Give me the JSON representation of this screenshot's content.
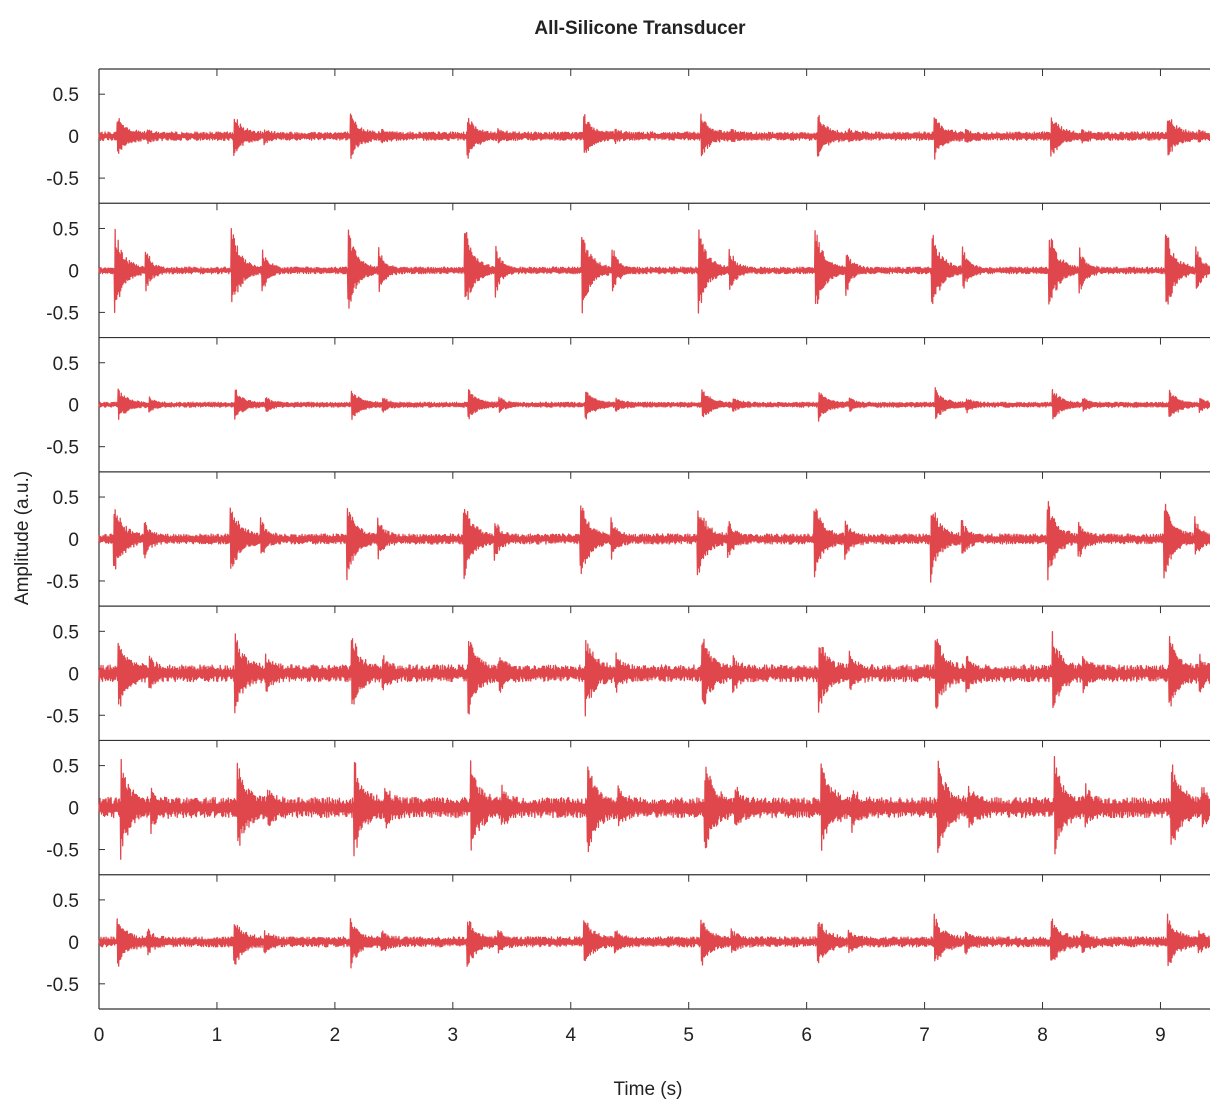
{
  "chart_data": {
    "type": "line",
    "title": "All-Silicone Transducer",
    "xlabel": "Time (s)",
    "ylabel": "Amplitude (a.u.)",
    "xlim": [
      0,
      9.42
    ],
    "ylim": [
      -0.8,
      0.8
    ],
    "x_ticks": [
      0,
      1,
      2,
      3,
      4,
      5,
      6,
      7,
      8,
      9
    ],
    "y_ticks": [
      0.5,
      0,
      -0.5
    ],
    "y_tick_labels": [
      "0.5",
      "0",
      "-0.5"
    ],
    "grid": false,
    "legend": "none",
    "line_color": "#e0474c",
    "burst_period_s": 0.99,
    "panels": [
      {
        "first_burst_s": 0.15,
        "peak_amplitude": 0.25,
        "secondary_amplitude": 0.05,
        "noise_amplitude": 0.05
      },
      {
        "first_burst_s": 0.13,
        "peak_amplitude": 0.55,
        "secondary_amplitude": 0.28,
        "noise_amplitude": 0.04
      },
      {
        "first_burst_s": 0.16,
        "peak_amplitude": 0.18,
        "secondary_amplitude": 0.08,
        "noise_amplitude": 0.03
      },
      {
        "first_burst_s": 0.12,
        "peak_amplitude": 0.48,
        "secondary_amplitude": 0.22,
        "noise_amplitude": 0.06
      },
      {
        "first_burst_s": 0.16,
        "peak_amplitude": 0.45,
        "secondary_amplitude": 0.18,
        "noise_amplitude": 0.1
      },
      {
        "first_burst_s": 0.18,
        "peak_amplitude": 0.55,
        "secondary_amplitude": 0.2,
        "noise_amplitude": 0.12
      },
      {
        "first_burst_s": 0.15,
        "peak_amplitude": 0.3,
        "secondary_amplitude": 0.12,
        "noise_amplitude": 0.06
      }
    ]
  }
}
